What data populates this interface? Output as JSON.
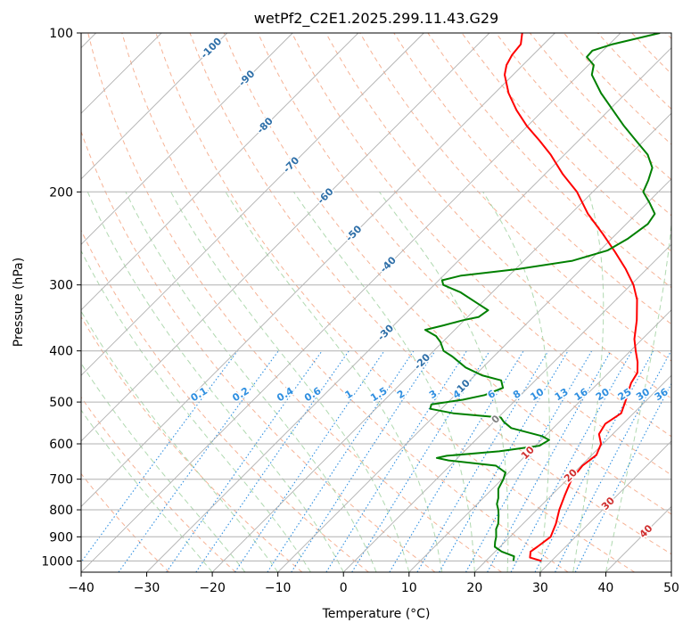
{
  "chart_data": {
    "type": "line",
    "subtype": "skew-T log-P diagram",
    "title": "wetPf2_C2E1.2025.299.11.43.G29",
    "xlabel": "Temperature (°C)",
    "ylabel": "Pressure (hPa)",
    "xlim": [
      -40,
      50
    ],
    "ylim": [
      1050,
      100
    ],
    "x_ticks": [
      -40,
      -30,
      -20,
      -10,
      0,
      10,
      20,
      30,
      40,
      50
    ],
    "x_tick_labels": [
      "−40",
      "−30",
      "−20",
      "−10",
      "0",
      "10",
      "20",
      "30",
      "40",
      "50"
    ],
    "y_ticks": [
      1000,
      900,
      800,
      700,
      600,
      500,
      400,
      300,
      200,
      100
    ],
    "y_tick_labels": [
      "1000",
      "900",
      "800",
      "700",
      "600",
      "500",
      "400",
      "300",
      "200",
      "100"
    ],
    "isotherm_labels": [
      {
        "temp": -100,
        "label": "-100"
      },
      {
        "temp": -90,
        "label": "-90"
      },
      {
        "temp": -80,
        "label": "-80"
      },
      {
        "temp": -70,
        "label": "-70"
      },
      {
        "temp": -60,
        "label": "-60"
      },
      {
        "temp": -50,
        "label": "-50"
      },
      {
        "temp": -40,
        "label": "-40"
      },
      {
        "temp": -30,
        "label": "-30"
      },
      {
        "temp": -20,
        "label": "-20"
      },
      {
        "temp": -10,
        "label": "-10"
      },
      {
        "temp": 0,
        "label": "0"
      },
      {
        "temp": 10,
        "label": "10"
      },
      {
        "temp": 20,
        "label": "20"
      },
      {
        "temp": 30,
        "label": "30"
      },
      {
        "temp": 40,
        "label": "40"
      }
    ],
    "mixing_ratio_labels": [
      "0.1",
      "0.2",
      "0.4",
      "0.6",
      "1",
      "1.5",
      "2",
      "3",
      "4",
      "6",
      "8",
      "10",
      "13",
      "16",
      "20",
      "25",
      "30",
      "36"
    ],
    "mixing_ratio_label_pressure": 500,
    "series": [
      {
        "name": "Temperature",
        "color": "#ff0000",
        "points": [
          {
            "p": 1000,
            "t": 28.5
          },
          {
            "p": 985,
            "t": 26.2
          },
          {
            "p": 960,
            "t": 25.4
          },
          {
            "p": 940,
            "t": 25.7
          },
          {
            "p": 900,
            "t": 26.2
          },
          {
            "p": 850,
            "t": 25.0
          },
          {
            "p": 800,
            "t": 23.4
          },
          {
            "p": 750,
            "t": 22.0
          },
          {
            "p": 700,
            "t": 20.6
          },
          {
            "p": 660,
            "t": 20.2
          },
          {
            "p": 630,
            "t": 20.7
          },
          {
            "p": 600,
            "t": 19.7
          },
          {
            "p": 575,
            "t": 17.9
          },
          {
            "p": 550,
            "t": 17.3
          },
          {
            "p": 525,
            "t": 18.1
          },
          {
            "p": 500,
            "t": 17.0
          },
          {
            "p": 480,
            "t": 16.0
          },
          {
            "p": 460,
            "t": 15.0
          },
          {
            "p": 440,
            "t": 14.4
          },
          {
            "p": 420,
            "t": 12.8
          },
          {
            "p": 400,
            "t": 10.8
          },
          {
            "p": 380,
            "t": 8.8
          },
          {
            "p": 350,
            "t": 6.3
          },
          {
            "p": 320,
            "t": 3.2
          },
          {
            "p": 300,
            "t": 0.4
          },
          {
            "p": 280,
            "t": -3.2
          },
          {
            "p": 260,
            "t": -7.4
          },
          {
            "p": 240,
            "t": -12.1
          },
          {
            "p": 220,
            "t": -17.4
          },
          {
            "p": 200,
            "t": -22.4
          },
          {
            "p": 185,
            "t": -27.3
          },
          {
            "p": 170,
            "t": -32.1
          },
          {
            "p": 160,
            "t": -35.9
          },
          {
            "p": 150,
            "t": -40.1
          },
          {
            "p": 140,
            "t": -44.1
          },
          {
            "p": 130,
            "t": -47.9
          },
          {
            "p": 120,
            "t": -51.3
          },
          {
            "p": 115,
            "t": -52.5
          },
          {
            "p": 110,
            "t": -53.2
          },
          {
            "p": 105,
            "t": -53.5
          },
          {
            "p": 100,
            "t": -55.0
          }
        ]
      },
      {
        "name": "Dewpoint",
        "color": "#008000",
        "points": [
          {
            "p": 1000,
            "t": 24.2
          },
          {
            "p": 980,
            "t": 23.6
          },
          {
            "p": 960,
            "t": 21.0
          },
          {
            "p": 940,
            "t": 19.2
          },
          {
            "p": 920,
            "t": 18.5
          },
          {
            "p": 900,
            "t": 17.9
          },
          {
            "p": 870,
            "t": 16.7
          },
          {
            "p": 850,
            "t": 16.2
          },
          {
            "p": 820,
            "t": 15.0
          },
          {
            "p": 800,
            "t": 14.1
          },
          {
            "p": 780,
            "t": 13.0
          },
          {
            "p": 760,
            "t": 12.3
          },
          {
            "p": 730,
            "t": 10.9
          },
          {
            "p": 700,
            "t": 10.2
          },
          {
            "p": 680,
            "t": 9.5
          },
          {
            "p": 660,
            "t": 7.0
          },
          {
            "p": 645,
            "t": -1.0
          },
          {
            "p": 638,
            "t": -3.2
          },
          {
            "p": 632,
            "t": -2.0
          },
          {
            "p": 620,
            "t": 5.3
          },
          {
            "p": 605,
            "t": 10.6
          },
          {
            "p": 590,
            "t": 11.2
          },
          {
            "p": 580,
            "t": 9.5
          },
          {
            "p": 560,
            "t": 3.6
          },
          {
            "p": 545,
            "t": 1.5
          },
          {
            "p": 535,
            "t": 0.4
          },
          {
            "p": 525,
            "t": -7.5
          },
          {
            "p": 515,
            "t": -11.7
          },
          {
            "p": 505,
            "t": -12.2
          },
          {
            "p": 495,
            "t": -8.1
          },
          {
            "p": 485,
            "t": -5.5
          },
          {
            "p": 470,
            "t": -3.8
          },
          {
            "p": 455,
            "t": -5.2
          },
          {
            "p": 445,
            "t": -8.9
          },
          {
            "p": 430,
            "t": -12.6
          },
          {
            "p": 410,
            "t": -16.3
          },
          {
            "p": 400,
            "t": -18.5
          },
          {
            "p": 385,
            "t": -20.3
          },
          {
            "p": 375,
            "t": -21.9
          },
          {
            "p": 365,
            "t": -24.5
          },
          {
            "p": 358,
            "t": -22.4
          },
          {
            "p": 350,
            "t": -20.2
          },
          {
            "p": 345,
            "t": -18.3
          },
          {
            "p": 335,
            "t": -17.9
          },
          {
            "p": 325,
            "t": -20.6
          },
          {
            "p": 310,
            "t": -24.8
          },
          {
            "p": 300,
            "t": -28.6
          },
          {
            "p": 294,
            "t": -29.5
          },
          {
            "p": 288,
            "t": -27.3
          },
          {
            "p": 280,
            "t": -19.6
          },
          {
            "p": 270,
            "t": -12.6
          },
          {
            "p": 258,
            "t": -8.8
          },
          {
            "p": 245,
            "t": -7.5
          },
          {
            "p": 230,
            "t": -6.7
          },
          {
            "p": 220,
            "t": -7.2
          },
          {
            "p": 210,
            "t": -9.6
          },
          {
            "p": 200,
            "t": -12.3
          },
          {
            "p": 190,
            "t": -13.3
          },
          {
            "p": 180,
            "t": -14.6
          },
          {
            "p": 170,
            "t": -17.3
          },
          {
            "p": 160,
            "t": -21.2
          },
          {
            "p": 150,
            "t": -25.3
          },
          {
            "p": 140,
            "t": -29.4
          },
          {
            "p": 130,
            "t": -33.8
          },
          {
            "p": 120,
            "t": -38.0
          },
          {
            "p": 115,
            "t": -39.2
          },
          {
            "p": 111,
            "t": -41.5
          },
          {
            "p": 108,
            "t": -41.6
          },
          {
            "p": 105,
            "t": -39.5
          },
          {
            "p": 100,
            "t": -34.0
          }
        ]
      }
    ]
  }
}
